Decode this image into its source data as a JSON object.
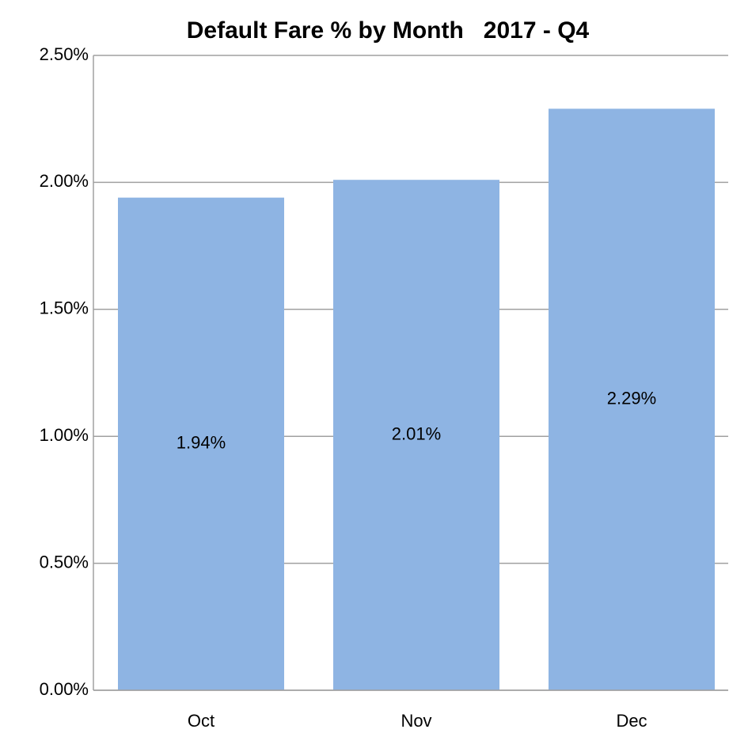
{
  "chart_data": {
    "type": "bar",
    "title": "Default Fare % by Month   2017 - Q4",
    "categories": [
      "Oct",
      "Nov",
      "Dec"
    ],
    "values": [
      1.94,
      2.01,
      2.29
    ],
    "value_labels": [
      "1.94%",
      "2.01%",
      "2.29%"
    ],
    "color": "#8eb4e3",
    "ylim": [
      0,
      2.5
    ],
    "yticks": [
      {
        "value": 0,
        "label": "0.00%"
      },
      {
        "value": 0.5,
        "label": "0.50%"
      },
      {
        "value": 1,
        "label": "1.00%"
      },
      {
        "value": 1.5,
        "label": "1.50%"
      },
      {
        "value": 2,
        "label": "2.00%"
      },
      {
        "value": 2.5,
        "label": "2.50%"
      }
    ],
    "grid": true
  }
}
